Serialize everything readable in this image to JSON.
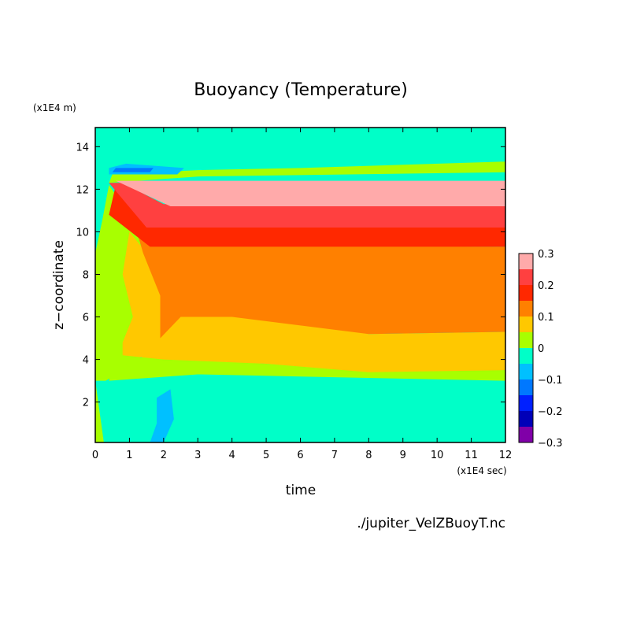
{
  "chart_data": {
    "type": "heatmap",
    "title": "Buoyancy (Temperature)",
    "xlabel": "time",
    "ylabel": "z−coordinate",
    "x_units": "(x1E4 sec)",
    "y_units": "(x1E4 m)",
    "xlim": [
      0,
      12
    ],
    "ylim": [
      0.1,
      14.9
    ],
    "x_ticks": [
      0,
      1,
      2,
      3,
      4,
      5,
      6,
      7,
      8,
      9,
      10,
      11,
      12
    ],
    "y_ticks": [
      2,
      4,
      6,
      8,
      10,
      12,
      14
    ],
    "colorbar": {
      "labels": [
        "−0.3",
        "−0.2",
        "−0.1",
        "0",
        "0.1",
        "0.2",
        "0.3"
      ],
      "levels": [
        -0.3,
        -0.25,
        -0.2,
        -0.15,
        -0.1,
        -0.05,
        0,
        0.05,
        0.1,
        0.15,
        0.2,
        0.25,
        0.3
      ],
      "colors": [
        "#8000a8",
        "#0000b8",
        "#0020ff",
        "#0078ff",
        "#00c0ff",
        "#00ffc8",
        "#a8ff00",
        "#ffc800",
        "#ff8000",
        "#ff2800",
        "#ff4040",
        "#ffaaaa"
      ]
    },
    "layers_by_z": [
      {
        "z_from": 13.4,
        "z_to": 14.9,
        "range": "-0.05 to 0",
        "color": "#00ffc8"
      },
      {
        "z_from": 12.6,
        "z_to": 13.3,
        "range": "0 to 0.05",
        "color": "#a8ff00"
      },
      {
        "z_from": 11.2,
        "z_to": 12.4,
        "range": "0.25 to 0.3",
        "color": "#ffaaaa"
      },
      {
        "z_from": 10.2,
        "z_to": 11.2,
        "range": "0.2 to 0.25",
        "color": "#ff4040"
      },
      {
        "z_from": 9.3,
        "z_to": 10.2,
        "range": "0.15 to 0.2",
        "color": "#ff2800"
      },
      {
        "z_from": 5.3,
        "z_to": 9.3,
        "range": "0.1 to 0.15",
        "color": "#ff8000"
      },
      {
        "z_from": 3.5,
        "z_to": 5.3,
        "range": "0.05 to 0.1",
        "color": "#ffc800"
      },
      {
        "z_from": 3.0,
        "z_to": 3.5,
        "range": "0 to 0.05",
        "color": "#a8ff00"
      },
      {
        "z_from": 0.1,
        "z_to": 3.0,
        "range": "-0.05 to 0",
        "color": "#00ffc8"
      }
    ]
  },
  "source_file": "./jupiter_VelZBuoyT.nc"
}
